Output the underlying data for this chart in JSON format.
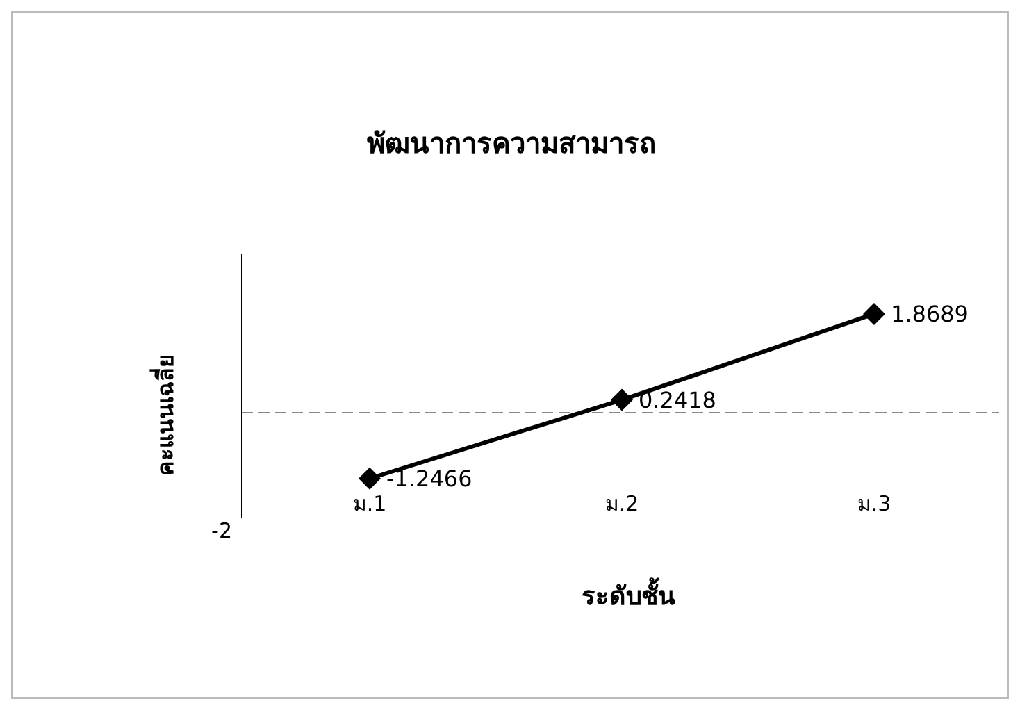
{
  "chart_data": {
    "type": "line",
    "title": "พัฒนาการความสามารถ",
    "xlabel": "ระดับชั้น",
    "ylabel": "คะแนนเฉลี่ย",
    "categories": [
      "ม.1",
      "ม.2",
      "ม.3"
    ],
    "series": [
      {
        "color": "#000000",
        "values": [
          -1.2466,
          0.2418,
          1.8689
        ]
      }
    ],
    "annotations": [
      "-2"
    ],
    "ylim": [
      -2,
      3
    ],
    "ref_lines": [
      {
        "axis": "y",
        "value": 0,
        "color": "#888888",
        "line_style": "dashed"
      }
    ],
    "marker": "diamond",
    "line_style": "solid",
    "data_labels": true,
    "legend": false
  }
}
